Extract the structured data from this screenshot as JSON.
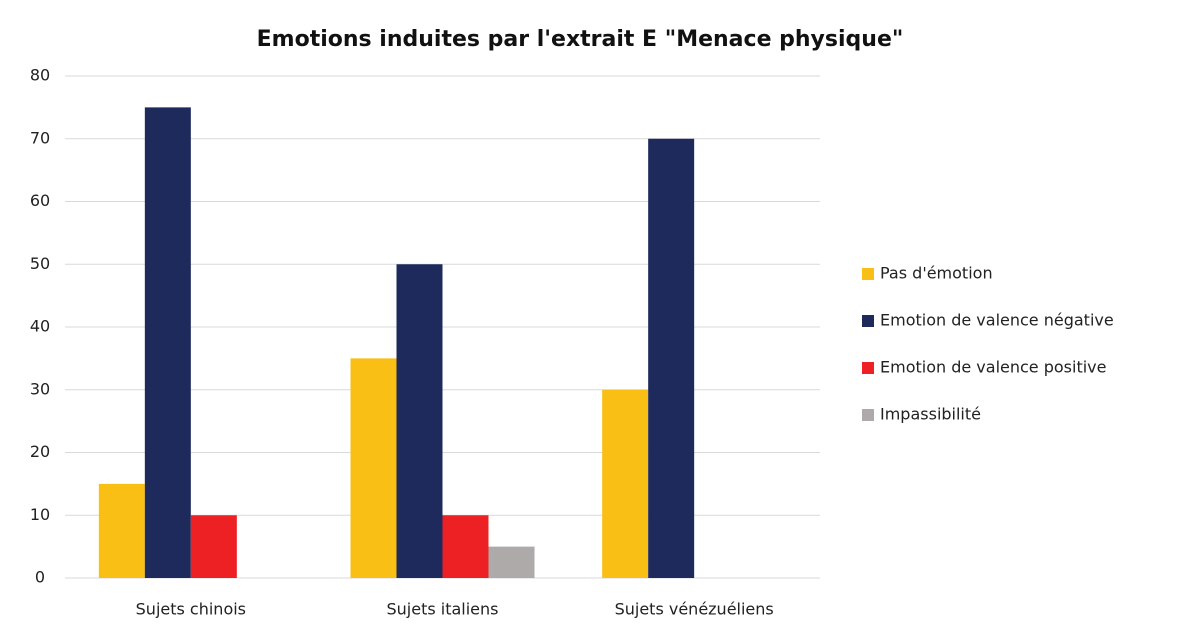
{
  "chart_data": {
    "type": "bar",
    "title": "Emotions induites par l'extrait E \"Menace physique\"",
    "categories": [
      "Sujets chinois",
      "Sujets italiens",
      "Sujets vénézuéliens"
    ],
    "series": [
      {
        "name": "Pas d'émotion",
        "color": "#f9bf15",
        "values": [
          15,
          35,
          30
        ]
      },
      {
        "name": "Emotion de valence négative",
        "color": "#1f2a5c",
        "values": [
          75,
          50,
          70
        ]
      },
      {
        "name": "Emotion de valence positive",
        "color": "#ed2024",
        "values": [
          10,
          10,
          0
        ]
      },
      {
        "name": "Impassibilité",
        "color": "#aeaaaa",
        "values": [
          0,
          5,
          0
        ]
      }
    ],
    "ylim": [
      0,
      80
    ],
    "yticks": [
      0,
      10,
      20,
      30,
      40,
      50,
      60,
      70,
      80
    ],
    "grid": true,
    "legend": "right"
  }
}
